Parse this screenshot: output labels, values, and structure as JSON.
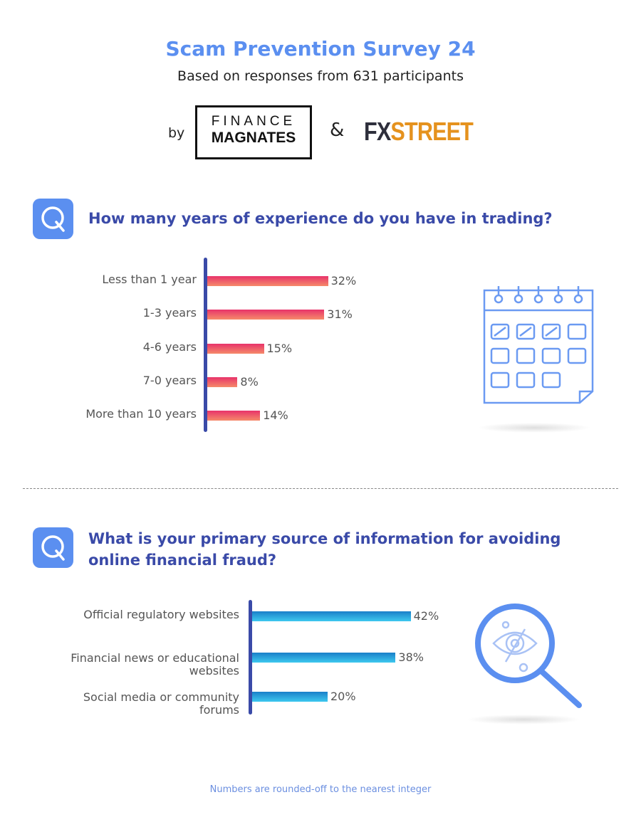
{
  "header": {
    "title": "Scam Prevention Survey 24",
    "subtitle": "Based on responses from 631 participants",
    "by": "by",
    "amp": "&",
    "logo_finance_magnates": [
      "FINANCE",
      "MAGNATES"
    ],
    "logo_fxstreet": [
      "FX",
      "STREET"
    ]
  },
  "colors": {
    "accent": "#5b8ff0",
    "question": "#3a4aa8",
    "bar_pink": [
      "#e8336a",
      "#f58a6a"
    ],
    "bar_blue": [
      "#1a7fc9",
      "#3ec8ef"
    ]
  },
  "icons": [
    "q-icon",
    "calendar-icon",
    "magnifier-eye-icon"
  ],
  "chart_data": [
    {
      "type": "bar",
      "orientation": "horizontal",
      "title": "How many years of experience do you have in trading?",
      "categories": [
        "Less than 1 year",
        "1-3 years",
        "4-6 years",
        "7-0 years",
        "More than 10 years"
      ],
      "values": [
        32,
        31,
        15,
        8,
        14
      ],
      "labels": [
        "32%",
        "31%",
        "15%",
        "8%",
        "14%"
      ],
      "unit": "%"
    },
    {
      "type": "bar",
      "orientation": "horizontal",
      "title": "What is your primary source of information for avoiding online financial fraud?",
      "categories": [
        [
          "Official regulatory websites"
        ],
        [
          "Financial news or educational",
          "websites"
        ],
        [
          "Social media or community",
          "forums"
        ]
      ],
      "values": [
        42,
        38,
        20
      ],
      "labels": [
        "42%",
        "38%",
        "20%"
      ],
      "unit": "%"
    }
  ],
  "questions": {
    "q1": "How many years of experience do you have in trading?",
    "q2_line1": "What is your primary source of information for avoiding",
    "q2_line2": "online financial fraud?"
  },
  "footer": "Numbers are rounded-off to the nearest integer"
}
